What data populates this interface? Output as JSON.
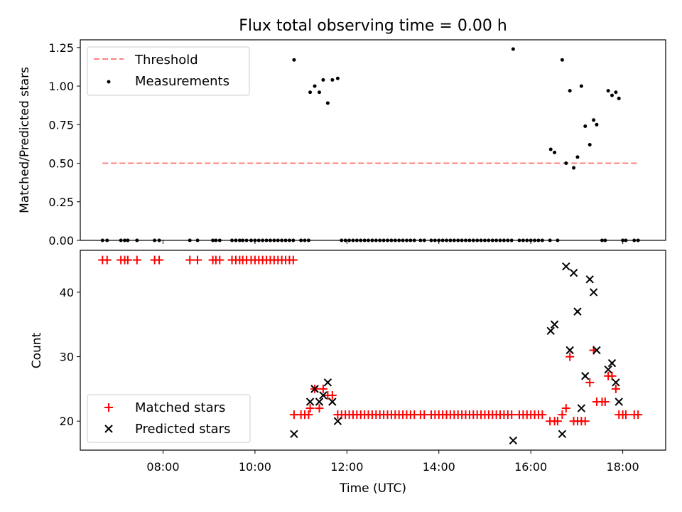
{
  "chart_data": [
    {
      "type": "scatter",
      "title": "Flux total observing time = 0.00 h",
      "xlabel": "",
      "ylabel": "Matched/Predicted stars",
      "xlim": [
        "06:12",
        "18:56"
      ],
      "ylim": [
        0,
        1.3
      ],
      "yticks": [
        0.0,
        0.25,
        0.5,
        0.75,
        1.0,
        1.25
      ],
      "ytick_labels": [
        "0.00",
        "0.25",
        "0.50",
        "0.75",
        "1.00",
        "1.25"
      ],
      "legend": {
        "position": "top-left",
        "entries": [
          "Threshold",
          "Measurements"
        ]
      },
      "threshold": {
        "name": "Threshold",
        "y": 0.5,
        "x": [
          "06:41",
          "18:22"
        ],
        "color": "#ff7f7f",
        "style": "dashed"
      },
      "series": [
        {
          "name": "Measurements",
          "color": "#000000",
          "marker": "dot",
          "points": [
            [
              "06:41",
              0
            ],
            [
              "06:47",
              0
            ],
            [
              "07:05",
              0
            ],
            [
              "07:10",
              0
            ],
            [
              "07:14",
              0
            ],
            [
              "07:26",
              0
            ],
            [
              "07:49",
              0
            ],
            [
              "07:55",
              0
            ],
            [
              "08:35",
              0
            ],
            [
              "08:45",
              0
            ],
            [
              "09:05",
              0
            ],
            [
              "09:09",
              0
            ],
            [
              "09:14",
              0
            ],
            [
              "09:30",
              0
            ],
            [
              "09:35",
              0
            ],
            [
              "09:40",
              0
            ],
            [
              "09:44",
              0
            ],
            [
              "09:49",
              0
            ],
            [
              "09:55",
              0
            ],
            [
              "10:00",
              0
            ],
            [
              "10:05",
              0
            ],
            [
              "10:10",
              0
            ],
            [
              "10:15",
              0
            ],
            [
              "10:20",
              0
            ],
            [
              "10:25",
              0
            ],
            [
              "10:30",
              0
            ],
            [
              "10:35",
              0
            ],
            [
              "10:40",
              0
            ],
            [
              "10:45",
              0
            ],
            [
              "10:50",
              0
            ],
            [
              "10:51",
              1.17
            ],
            [
              "11:00",
              0
            ],
            [
              "11:05",
              0
            ],
            [
              "11:10",
              0
            ],
            [
              "11:12",
              0.96
            ],
            [
              "11:18",
              1.0
            ],
            [
              "11:24",
              0.96
            ],
            [
              "11:29",
              1.04
            ],
            [
              "11:35",
              0.89
            ],
            [
              "11:41",
              1.04
            ],
            [
              "11:48",
              1.05
            ],
            [
              "11:53",
              0
            ],
            [
              "11:58",
              0
            ],
            [
              "12:03",
              0
            ],
            [
              "12:08",
              0
            ],
            [
              "12:13",
              0
            ],
            [
              "12:18",
              0
            ],
            [
              "12:23",
              0
            ],
            [
              "12:28",
              0
            ],
            [
              "12:33",
              0
            ],
            [
              "12:38",
              0
            ],
            [
              "12:43",
              0
            ],
            [
              "12:48",
              0
            ],
            [
              "12:53",
              0
            ],
            [
              "12:58",
              0
            ],
            [
              "13:03",
              0
            ],
            [
              "13:08",
              0
            ],
            [
              "13:13",
              0
            ],
            [
              "13:18",
              0
            ],
            [
              "13:23",
              0
            ],
            [
              "13:28",
              0
            ],
            [
              "13:36",
              0
            ],
            [
              "13:41",
              0
            ],
            [
              "13:50",
              0
            ],
            [
              "13:55",
              0
            ],
            [
              "14:00",
              0
            ],
            [
              "14:05",
              0
            ],
            [
              "14:10",
              0
            ],
            [
              "14:15",
              0
            ],
            [
              "14:20",
              0
            ],
            [
              "14:25",
              0
            ],
            [
              "14:30",
              0
            ],
            [
              "14:35",
              0
            ],
            [
              "14:40",
              0
            ],
            [
              "14:45",
              0
            ],
            [
              "14:50",
              0
            ],
            [
              "14:55",
              0
            ],
            [
              "15:00",
              0
            ],
            [
              "15:05",
              0
            ],
            [
              "15:10",
              0
            ],
            [
              "15:15",
              0
            ],
            [
              "15:20",
              0
            ],
            [
              "15:25",
              0
            ],
            [
              "15:30",
              0
            ],
            [
              "15:35",
              0
            ],
            [
              "15:37",
              1.24
            ],
            [
              "15:45",
              0
            ],
            [
              "15:50",
              0
            ],
            [
              "15:55",
              0
            ],
            [
              "16:00",
              0
            ],
            [
              "16:05",
              0
            ],
            [
              "16:10",
              0
            ],
            [
              "16:15",
              0
            ],
            [
              "16:25",
              0
            ],
            [
              "16:26",
              0.59
            ],
            [
              "16:31",
              0.57
            ],
            [
              "16:35",
              0
            ],
            [
              "16:41",
              1.17
            ],
            [
              "16:46",
              0.5
            ],
            [
              "16:51",
              0.97
            ],
            [
              "16:56",
              0.47
            ],
            [
              "17:01",
              0.54
            ],
            [
              "17:06",
              1.0
            ],
            [
              "17:11",
              0.74
            ],
            [
              "17:17",
              0.62
            ],
            [
              "17:22",
              0.78
            ],
            [
              "17:26",
              0.75
            ],
            [
              "17:33",
              0
            ],
            [
              "17:37",
              0
            ],
            [
              "17:41",
              0.97
            ],
            [
              "17:46",
              0.94
            ],
            [
              "17:51",
              0.96
            ],
            [
              "17:55",
              0.92
            ],
            [
              "18:00",
              0
            ],
            [
              "18:04",
              0
            ],
            [
              "18:15",
              0
            ],
            [
              "18:20",
              0
            ]
          ]
        }
      ]
    },
    {
      "type": "scatter",
      "title": "",
      "xlabel": "Time (UTC)",
      "ylabel": "Count",
      "xlim": [
        "06:12",
        "18:56"
      ],
      "ylim": [
        15.5,
        46.5
      ],
      "yticks": [
        20,
        30,
        40
      ],
      "ytick_labels": [
        "20",
        "30",
        "40"
      ],
      "xticks": [
        "08:00",
        "10:00",
        "12:00",
        "14:00",
        "16:00",
        "18:00"
      ],
      "legend": {
        "position": "bottom-left",
        "entries": [
          "Matched stars",
          "Predicted stars"
        ]
      },
      "series": [
        {
          "name": "Matched stars",
          "color": "#ff0000",
          "marker": "plus",
          "points": [
            [
              "06:41",
              45
            ],
            [
              "06:47",
              45
            ],
            [
              "07:05",
              45
            ],
            [
              "07:10",
              45
            ],
            [
              "07:14",
              45
            ],
            [
              "07:26",
              45
            ],
            [
              "07:49",
              45
            ],
            [
              "07:55",
              45
            ],
            [
              "08:35",
              45
            ],
            [
              "08:45",
              45
            ],
            [
              "09:05",
              45
            ],
            [
              "09:09",
              45
            ],
            [
              "09:14",
              45
            ],
            [
              "09:30",
              45
            ],
            [
              "09:35",
              45
            ],
            [
              "09:40",
              45
            ],
            [
              "09:44",
              45
            ],
            [
              "09:49",
              45
            ],
            [
              "09:55",
              45
            ],
            [
              "10:00",
              45
            ],
            [
              "10:05",
              45
            ],
            [
              "10:10",
              45
            ],
            [
              "10:15",
              45
            ],
            [
              "10:20",
              45
            ],
            [
              "10:25",
              45
            ],
            [
              "10:30",
              45
            ],
            [
              "10:35",
              45
            ],
            [
              "10:40",
              45
            ],
            [
              "10:45",
              45
            ],
            [
              "10:50",
              45
            ],
            [
              "10:51",
              21
            ],
            [
              "11:00",
              21
            ],
            [
              "11:05",
              21
            ],
            [
              "11:10",
              21
            ],
            [
              "11:12",
              22
            ],
            [
              "11:18",
              25
            ],
            [
              "11:24",
              22
            ],
            [
              "11:29",
              25
            ],
            [
              "11:35",
              24
            ],
            [
              "11:41",
              24
            ],
            [
              "11:48",
              21
            ],
            [
              "11:53",
              21
            ],
            [
              "11:58",
              21
            ],
            [
              "12:03",
              21
            ],
            [
              "12:08",
              21
            ],
            [
              "12:13",
              21
            ],
            [
              "12:18",
              21
            ],
            [
              "12:23",
              21
            ],
            [
              "12:28",
              21
            ],
            [
              "12:33",
              21
            ],
            [
              "12:38",
              21
            ],
            [
              "12:43",
              21
            ],
            [
              "12:48",
              21
            ],
            [
              "12:53",
              21
            ],
            [
              "12:58",
              21
            ],
            [
              "13:03",
              21
            ],
            [
              "13:08",
              21
            ],
            [
              "13:13",
              21
            ],
            [
              "13:18",
              21
            ],
            [
              "13:23",
              21
            ],
            [
              "13:28",
              21
            ],
            [
              "13:36",
              21
            ],
            [
              "13:41",
              21
            ],
            [
              "13:50",
              21
            ],
            [
              "13:55",
              21
            ],
            [
              "14:00",
              21
            ],
            [
              "14:05",
              21
            ],
            [
              "14:10",
              21
            ],
            [
              "14:15",
              21
            ],
            [
              "14:20",
              21
            ],
            [
              "14:25",
              21
            ],
            [
              "14:30",
              21
            ],
            [
              "14:35",
              21
            ],
            [
              "14:40",
              21
            ],
            [
              "14:45",
              21
            ],
            [
              "14:50",
              21
            ],
            [
              "14:55",
              21
            ],
            [
              "15:00",
              21
            ],
            [
              "15:05",
              21
            ],
            [
              "15:10",
              21
            ],
            [
              "15:15",
              21
            ],
            [
              "15:20",
              21
            ],
            [
              "15:25",
              21
            ],
            [
              "15:30",
              21
            ],
            [
              "15:35",
              21
            ],
            [
              "15:45",
              21
            ],
            [
              "15:50",
              21
            ],
            [
              "15:55",
              21
            ],
            [
              "16:00",
              21
            ],
            [
              "16:05",
              21
            ],
            [
              "16:10",
              21
            ],
            [
              "16:15",
              21
            ],
            [
              "16:25",
              20
            ],
            [
              "16:31",
              20
            ],
            [
              "16:35",
              20
            ],
            [
              "16:41",
              21
            ],
            [
              "16:46",
              22
            ],
            [
              "16:51",
              30
            ],
            [
              "16:56",
              20
            ],
            [
              "17:01",
              20
            ],
            [
              "17:06",
              20
            ],
            [
              "17:11",
              20
            ],
            [
              "17:17",
              26
            ],
            [
              "17:22",
              31
            ],
            [
              "17:26",
              23
            ],
            [
              "17:33",
              23
            ],
            [
              "17:37",
              23
            ],
            [
              "17:41",
              27
            ],
            [
              "17:46",
              27
            ],
            [
              "17:51",
              25
            ],
            [
              "17:55",
              21
            ],
            [
              "18:00",
              21
            ],
            [
              "18:04",
              21
            ],
            [
              "18:15",
              21
            ],
            [
              "18:20",
              21
            ]
          ]
        },
        {
          "name": "Predicted stars",
          "color": "#000000",
          "marker": "x",
          "points": [
            [
              "10:51",
              18
            ],
            [
              "11:12",
              23
            ],
            [
              "11:18",
              25
            ],
            [
              "11:24",
              23
            ],
            [
              "11:29",
              24
            ],
            [
              "11:35",
              26
            ],
            [
              "11:41",
              23
            ],
            [
              "11:48",
              20
            ],
            [
              "15:37",
              17
            ],
            [
              "16:26",
              34
            ],
            [
              "16:31",
              35
            ],
            [
              "16:41",
              18
            ],
            [
              "16:46",
              44
            ],
            [
              "16:51",
              31
            ],
            [
              "16:56",
              43
            ],
            [
              "17:01",
              37
            ],
            [
              "17:06",
              22
            ],
            [
              "17:11",
              27
            ],
            [
              "17:17",
              42
            ],
            [
              "17:22",
              40
            ],
            [
              "17:26",
              31
            ],
            [
              "17:41",
              28
            ],
            [
              "17:46",
              29
            ],
            [
              "17:51",
              26
            ],
            [
              "17:55",
              23
            ]
          ]
        }
      ]
    }
  ]
}
